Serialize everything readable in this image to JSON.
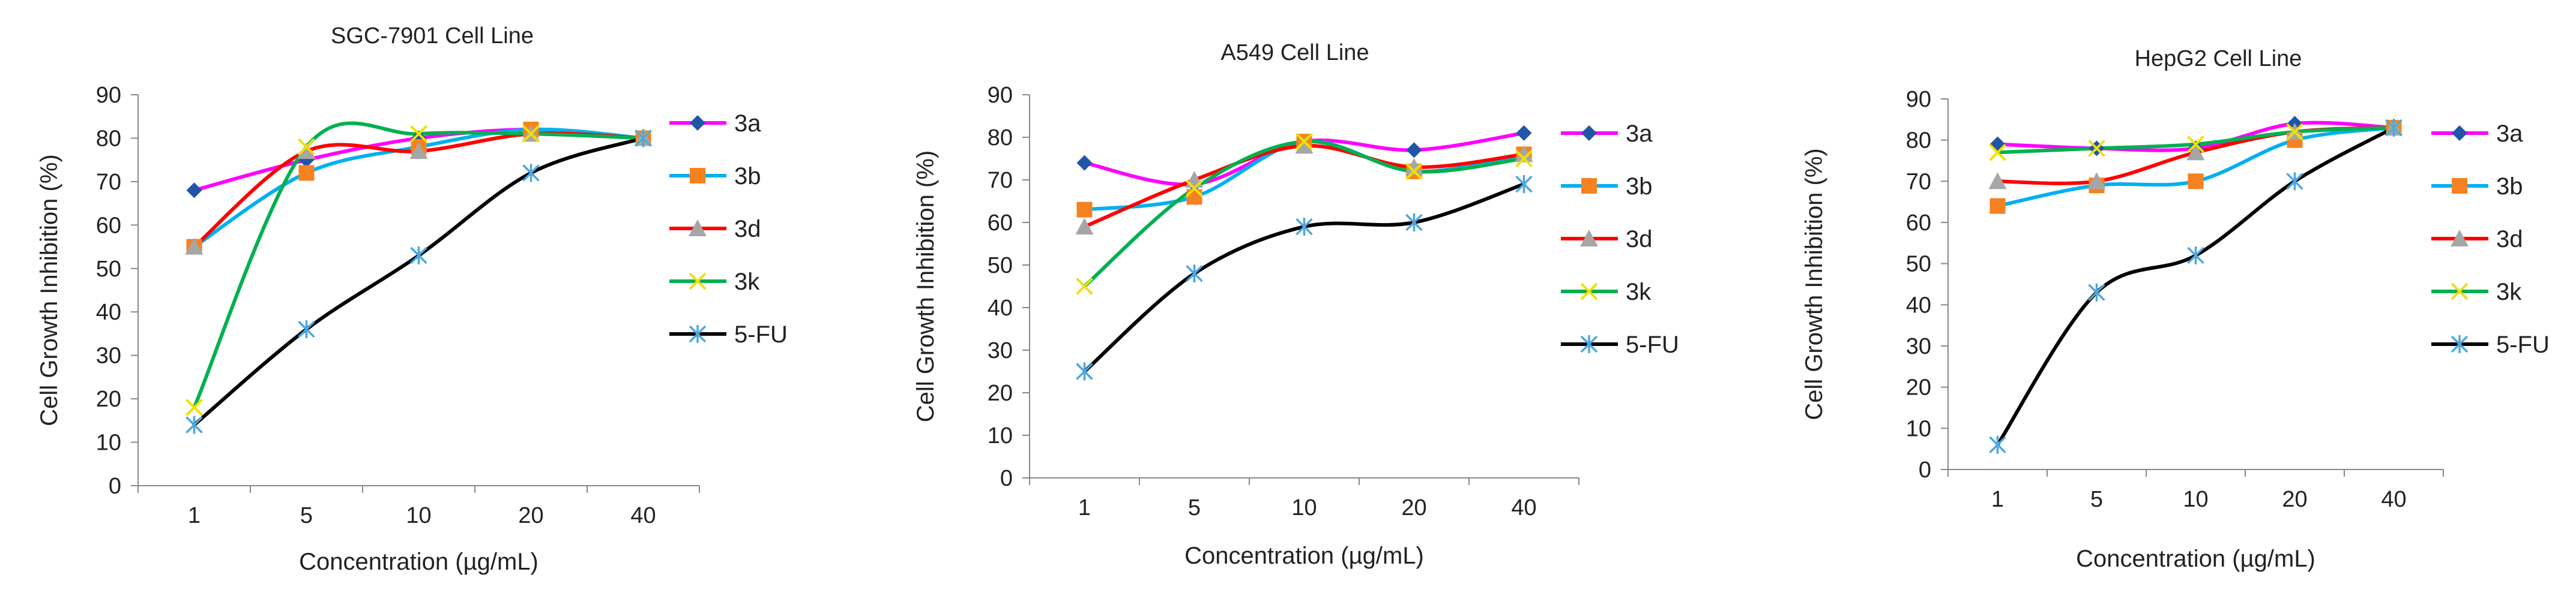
{
  "chart_data": [
    {
      "type": "line",
      "title": "SGC-7901 Cell Line",
      "xlabel": "Concentration (µg/mL)",
      "ylabel": "Cell Growth Inhibition (%)",
      "categories": [
        "1",
        "5",
        "10",
        "20",
        "40"
      ],
      "ylim": [
        0,
        90
      ],
      "yticks": [
        0,
        10,
        20,
        30,
        40,
        50,
        60,
        70,
        80,
        90
      ],
      "grid": false,
      "legend": "right",
      "series": [
        {
          "name": "3a",
          "values": [
            68,
            75,
            80,
            82,
            80
          ]
        },
        {
          "name": "3b",
          "values": [
            55,
            72,
            78,
            82,
            80
          ]
        },
        {
          "name": "3d",
          "values": [
            55,
            77,
            77,
            81,
            80
          ]
        },
        {
          "name": "3k",
          "values": [
            18,
            78,
            81,
            81,
            80
          ]
        },
        {
          "name": "5-FU",
          "values": [
            14,
            36,
            53,
            72,
            80
          ]
        }
      ]
    },
    {
      "type": "line",
      "title": "A549 Cell Line",
      "xlabel": "Concentration (µg/mL)",
      "ylabel": "Cell Growth Inhibition (%)",
      "categories": [
        "1",
        "5",
        "10",
        "20",
        "40"
      ],
      "ylim": [
        0,
        90
      ],
      "yticks": [
        0,
        10,
        20,
        30,
        40,
        50,
        60,
        70,
        80,
        90
      ],
      "grid": false,
      "legend": "right",
      "series": [
        {
          "name": "3a",
          "values": [
            74,
            69,
            79,
            77,
            81
          ]
        },
        {
          "name": "3b",
          "values": [
            63,
            66,
            79,
            72,
            76
          ]
        },
        {
          "name": "3d",
          "values": [
            59,
            70,
            78,
            73,
            76
          ]
        },
        {
          "name": "3k",
          "values": [
            45,
            68,
            79,
            72,
            75
          ]
        },
        {
          "name": "5-FU",
          "values": [
            25,
            48,
            59,
            60,
            69
          ]
        }
      ]
    },
    {
      "type": "line",
      "title": "HepG2 Cell Line",
      "xlabel": "Concentration (µg/mL)",
      "ylabel": "Cell Growth Inhibition (%)",
      "categories": [
        "1",
        "5",
        "10",
        "20",
        "40"
      ],
      "ylim": [
        0,
        90
      ],
      "yticks": [
        0,
        10,
        20,
        30,
        40,
        50,
        60,
        70,
        80,
        90
      ],
      "grid": false,
      "legend": "right",
      "series": [
        {
          "name": "3a",
          "values": [
            79,
            78,
            78,
            84,
            83
          ]
        },
        {
          "name": "3b",
          "values": [
            64,
            69,
            70,
            80,
            83
          ]
        },
        {
          "name": "3d",
          "values": [
            70,
            70,
            77,
            82,
            83
          ]
        },
        {
          "name": "3k",
          "values": [
            77,
            78,
            79,
            82,
            83
          ]
        },
        {
          "name": "5-FU",
          "values": [
            6,
            43,
            52,
            70,
            83
          ]
        }
      ]
    }
  ],
  "colors": {
    "3a_line": "#ff00ff",
    "3a_marker": "#2155a8",
    "3b_line": "#00b0f0",
    "3b_marker": "#f58220",
    "3d_line": "#ff0000",
    "3d_marker": "#a6a6a6",
    "3k_line": "#00b050",
    "3k_marker": "#f0e000",
    "5fu_line": "#000000",
    "5fu_marker": "#4da6e0",
    "axis": "#888888"
  }
}
